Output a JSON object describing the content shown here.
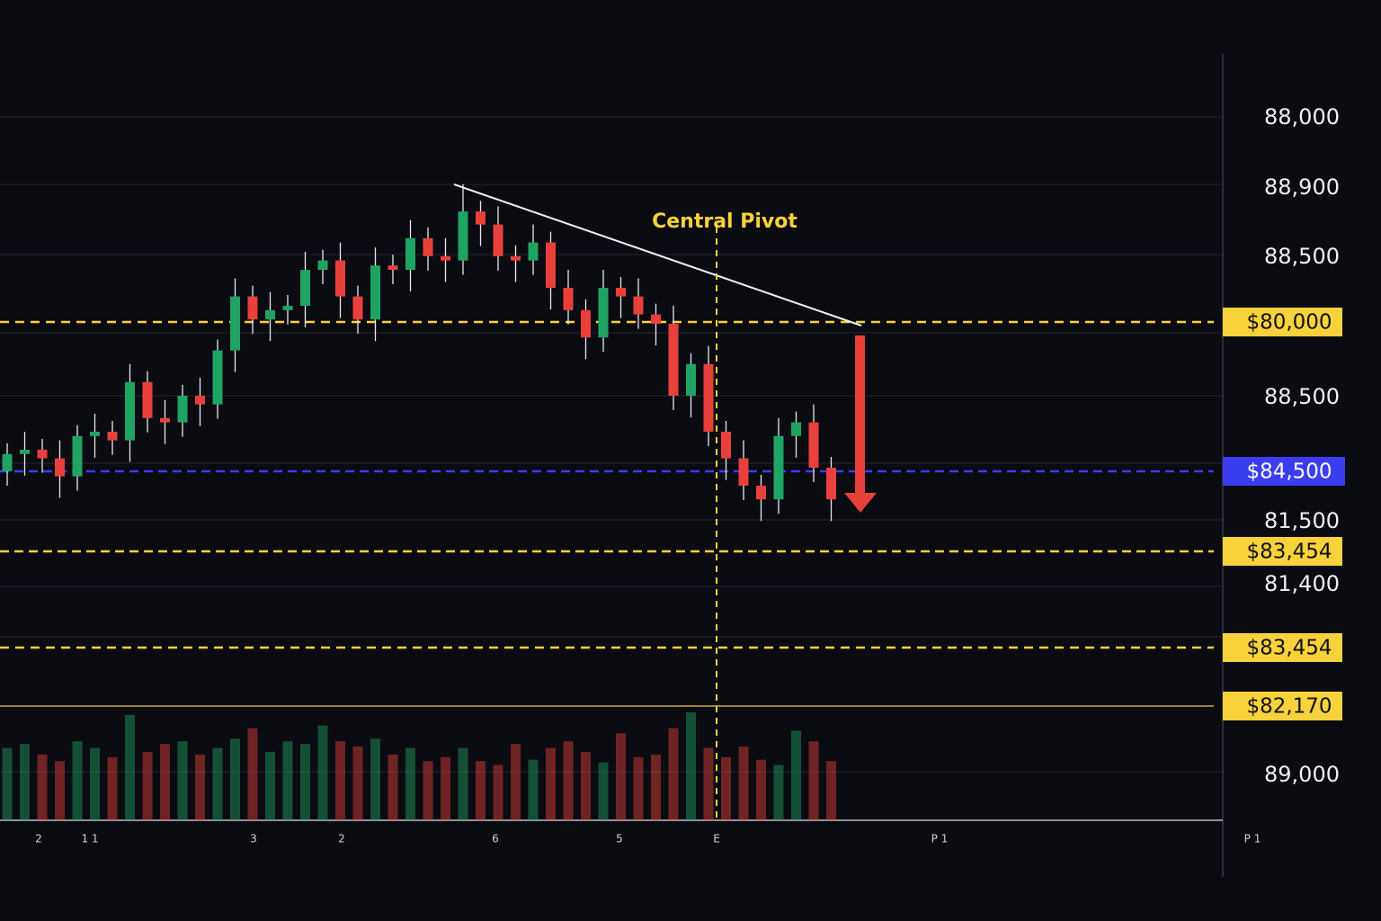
{
  "chart_data": {
    "type": "candlestick",
    "annotation": "Central Pivot",
    "ylim": [
      79850,
      90000
    ],
    "open": [
      84700,
      84940,
      85000,
      84880,
      84630,
      85190,
      85250,
      85130,
      85940,
      85440,
      85380,
      85750,
      85630,
      86380,
      87130,
      86810,
      86940,
      87000,
      87500,
      87630,
      87130,
      86810,
      87560,
      87500,
      87940,
      87690,
      87630,
      88310,
      88130,
      87690,
      87630,
      87880,
      87250,
      86940,
      86560,
      87250,
      87130,
      86880,
      86750,
      85750,
      86190,
      85250,
      84880,
      84500,
      84310,
      85190,
      85380,
      84750
    ],
    "high": [
      85090,
      85250,
      85150,
      85130,
      85340,
      85500,
      85400,
      86190,
      86090,
      85690,
      85900,
      86000,
      86530,
      87380,
      87280,
      87190,
      87150,
      87750,
      87780,
      87880,
      87280,
      87810,
      87710,
      88190,
      88090,
      87940,
      88690,
      88460,
      88380,
      87840,
      88130,
      88030,
      87500,
      87090,
      87500,
      87400,
      87380,
      87030,
      87000,
      86340,
      86440,
      85400,
      85130,
      84650,
      85440,
      85530,
      85630,
      84900
    ],
    "low": [
      84500,
      84640,
      84680,
      84330,
      84430,
      84890,
      84930,
      84830,
      85240,
      85080,
      85180,
      85330,
      85430,
      86080,
      86610,
      86510,
      86740,
      86700,
      87300,
      86830,
      86610,
      86510,
      87300,
      87200,
      87490,
      87330,
      87430,
      87830,
      87490,
      87330,
      87430,
      86950,
      86740,
      86260,
      86360,
      86830,
      86680,
      86450,
      85550,
      85450,
      85050,
      84580,
      84300,
      84010,
      84110,
      84890,
      84550,
      84010
    ],
    "close": [
      84940,
      85000,
      84880,
      84630,
      85190,
      85250,
      85130,
      85940,
      85440,
      85380,
      85750,
      85630,
      86380,
      87130,
      86810,
      86940,
      87000,
      87500,
      87630,
      87130,
      86810,
      87560,
      87500,
      87940,
      87690,
      87630,
      88310,
      88130,
      87690,
      87630,
      87880,
      87250,
      86940,
      86560,
      87250,
      87130,
      86880,
      86750,
      85750,
      86190,
      85250,
      84880,
      84500,
      84310,
      85190,
      85380,
      84750,
      84310
    ],
    "volume": [
      55,
      58,
      50,
      45,
      60,
      55,
      48,
      80,
      52,
      58,
      60,
      50,
      55,
      62,
      70,
      52,
      60,
      58,
      72,
      60,
      56,
      62,
      50,
      55,
      45,
      48,
      55,
      45,
      42,
      58,
      46,
      55,
      60,
      52,
      44,
      66,
      48,
      50,
      70,
      82,
      55,
      48,
      56,
      46,
      42,
      68,
      60,
      45
    ],
    "up_color": "#1fa463",
    "down_color": "#e8403a",
    "price_labels": [
      "88,000",
      "88,900",
      "88,500",
      "88,500",
      "81,500",
      "81,400",
      "89,000"
    ],
    "levels": [
      {
        "label": "$80,000",
        "color": "#f8d23a"
      },
      {
        "label": "$84,500",
        "color": "#3b3df0"
      },
      {
        "label": "$83,454",
        "color": "#f8d23a"
      },
      {
        "label": "$83,454",
        "color": "#f8d23a"
      },
      {
        "label": "$82,170",
        "color": "#f8d23a"
      }
    ],
    "x_labels": [
      "2",
      "1 1",
      "3",
      "2",
      "6",
      "5",
      "E",
      "P 1",
      "P 1"
    ]
  }
}
